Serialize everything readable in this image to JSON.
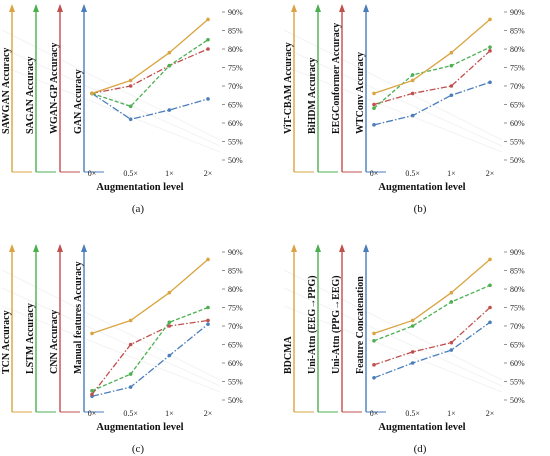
{
  "figure": {
    "chart_data": [
      {
        "type": "line",
        "panel_label": "(a)",
        "xlabel": "Augmentation level",
        "categories": [
          "0×",
          "0.5×",
          "1×",
          "2×"
        ],
        "y_ticks": [
          "50%",
          "55%",
          "60%",
          "65%",
          "70%",
          "75%",
          "80%",
          "85%",
          "90%"
        ],
        "ylim": [
          50,
          90
        ],
        "series": [
          {
            "name": "SAWGAN Accuracy",
            "color": "#d9a441",
            "values": [
              68.0,
              71.5,
              79.0,
              88.0
            ]
          },
          {
            "name": "SAGAN Accuracy",
            "color": "#4caf50",
            "values": [
              68.0,
              64.5,
              75.5,
              82.5
            ]
          },
          {
            "name": "WGAN-GP Accuracy",
            "color": "#c0504d",
            "values": [
              68.0,
              70.0,
              75.5,
              80.0
            ]
          },
          {
            "name": "GAN Accuracy",
            "color": "#4a7ebb",
            "values": [
              68.0,
              61.0,
              63.5,
              66.5
            ]
          }
        ]
      },
      {
        "type": "line",
        "panel_label": "(b)",
        "xlabel": "Augmentation level",
        "categories": [
          "0×",
          "0.5×",
          "1×",
          "2×"
        ],
        "y_ticks": [
          "50%",
          "55%",
          "60%",
          "65%",
          "70%",
          "75%",
          "80%",
          "85%",
          "90%"
        ],
        "ylim": [
          50,
          90
        ],
        "series": [
          {
            "name": "ViT-CBAM Accuracy",
            "color": "#d9a441",
            "values": [
              68.0,
              71.5,
              79.0,
              88.0
            ]
          },
          {
            "name": "BiHDM Accuracy",
            "color": "#4caf50",
            "values": [
              64.0,
              73.0,
              75.5,
              80.5
            ]
          },
          {
            "name": "EEGConformer Accuracy",
            "color": "#c0504d",
            "values": [
              65.0,
              68.0,
              70.0,
              79.5
            ]
          },
          {
            "name": "WTConv Accuracy",
            "color": "#4a7ebb",
            "values": [
              59.5,
              62.0,
              67.5,
              71.0
            ]
          }
        ]
      },
      {
        "type": "line",
        "panel_label": "(c)",
        "xlabel": "Augmentation level",
        "categories": [
          "0×",
          "0.5×",
          "1×",
          "2×"
        ],
        "y_ticks": [
          "50%",
          "55%",
          "60%",
          "65%",
          "70%",
          "75%",
          "80%",
          "85%",
          "90%"
        ],
        "ylim": [
          50,
          90
        ],
        "series": [
          {
            "name": "TCN Accuracy",
            "color": "#d9a441",
            "values": [
              68.0,
              71.5,
              79.0,
              88.0
            ]
          },
          {
            "name": "LSTM Accuracy",
            "color": "#4caf50",
            "values": [
              52.5,
              57.0,
              71.0,
              75.0
            ]
          },
          {
            "name": "CNN Accuracy",
            "color": "#c0504d",
            "values": [
              51.5,
              65.0,
              70.0,
              71.5
            ]
          },
          {
            "name": "Manual features Accuracy",
            "color": "#4a7ebb",
            "values": [
              51.0,
              53.5,
              62.0,
              70.5
            ]
          }
        ]
      },
      {
        "type": "line",
        "panel_label": "(d)",
        "xlabel": "Augmentation level",
        "categories": [
          "0×",
          "0.5×",
          "1×",
          "2×"
        ],
        "y_ticks": [
          "50%",
          "55%",
          "60%",
          "65%",
          "70%",
          "75%",
          "80%",
          "85%",
          "90%"
        ],
        "ylim": [
          50,
          90
        ],
        "series": [
          {
            "name": "BDCMA",
            "color": "#d9a441",
            "values": [
              68.0,
              71.5,
              79.0,
              88.0
            ]
          },
          {
            "name": "Uni-Attn (EEG→PPG)",
            "color": "#4caf50",
            "values": [
              66.0,
              70.0,
              76.5,
              81.0
            ]
          },
          {
            "name": "Uni-Attn (PPG→EEG)",
            "color": "#c0504d",
            "values": [
              59.5,
              63.0,
              65.5,
              75.0
            ]
          },
          {
            "name": "Feature Concatenation",
            "color": "#4a7ebb",
            "values": [
              56.0,
              60.0,
              63.5,
              71.0
            ]
          }
        ]
      }
    ]
  }
}
